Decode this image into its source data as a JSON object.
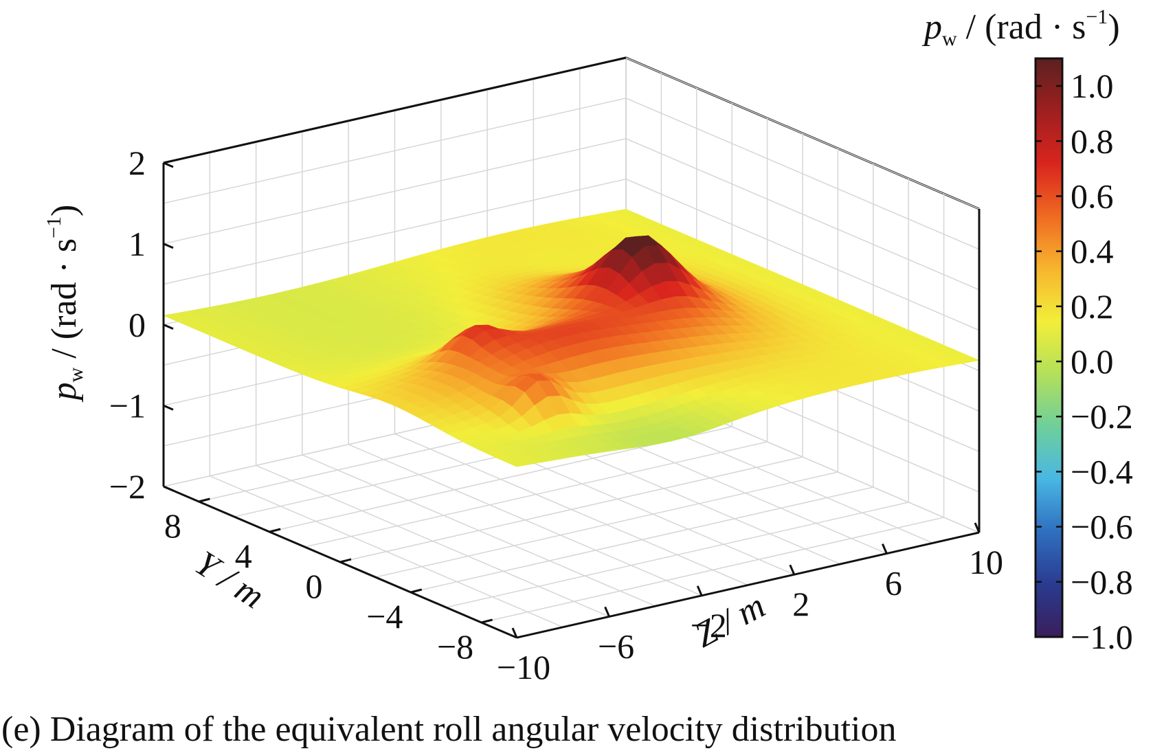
{
  "chart_data": {
    "type": "surface3d",
    "caption": "(e) Diagram of the equivalent roll angular velocity distribution",
    "zlabel": {
      "var": "p",
      "sub": "w",
      "units": " / (rad · s",
      "exp": "−1",
      "close": ")"
    },
    "xlabel": "Y / m",
    "ylabel": "Z / m",
    "colorbar_label": {
      "var": "p",
      "sub": "w",
      "units": " / (rad · s",
      "exp": "−1",
      "close": ")"
    },
    "y_ticks": [
      "8",
      "4",
      "0",
      "−4",
      "−8"
    ],
    "y_tick_values": [
      8,
      4,
      0,
      -4,
      -8
    ],
    "z_ticks": [
      "−10",
      "−6",
      "−2",
      "2",
      "6",
      "10"
    ],
    "z_tick_values": [
      -10,
      -6,
      -2,
      2,
      6,
      10
    ],
    "p_ticks": [
      "2",
      "1",
      "0",
      "−1",
      "−2"
    ],
    "p_tick_values": [
      2,
      1,
      0,
      -1,
      -2
    ],
    "colorbar_ticks": [
      "1.0",
      "0.8",
      "0.6",
      "0.4",
      "0.2",
      "0.0",
      "−0.2",
      "−0.4",
      "−0.6",
      "−0.8",
      "−1.0"
    ],
    "colorbar_tick_values": [
      1.0,
      0.8,
      0.6,
      0.4,
      0.2,
      0.0,
      -0.2,
      -0.4,
      -0.6,
      -0.8,
      -1.0
    ],
    "ylim": [
      -10,
      10
    ],
    "zlim": [
      -10,
      10
    ],
    "plim": [
      -2,
      2
    ],
    "clim": [
      -1.0,
      1.1
    ],
    "grid": true,
    "colormap": [
      "#3a1e5c",
      "#2a3b8f",
      "#2f6fc0",
      "#49b7e3",
      "#6fcf9a",
      "#b3e05a",
      "#f2ee3a",
      "#f7b52e",
      "#ef6a22",
      "#d9251e",
      "#9e1f1f",
      "#5c2020"
    ],
    "surface_peaks": [
      {
        "y": -6,
        "z": -6,
        "p": 0.9
      },
      {
        "y": -1,
        "z": -5,
        "p": 0.85
      },
      {
        "y": 0,
        "z": 3,
        "p": 1.1
      }
    ]
  }
}
